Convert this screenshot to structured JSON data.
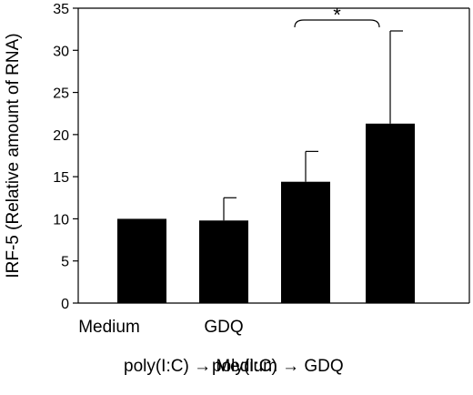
{
  "chart_data": {
    "type": "bar",
    "categories": [
      "Medium",
      "GDQ",
      "poly(I:C) → Medium",
      "poly(I:C) → GDQ"
    ],
    "series": [
      {
        "values": [
          10.0,
          9.8,
          14.4,
          21.3
        ],
        "error_upper": [
          0,
          2.7,
          3.6,
          11.0
        ]
      }
    ],
    "title": "",
    "xlabel": "",
    "ylabel": "IRF-5 (Relative amount of RNA)",
    "ylim": [
      0,
      35
    ],
    "yticks": [
      0,
      5,
      10,
      15,
      20,
      25,
      30,
      35
    ],
    "grid": false,
    "legend": "none",
    "bar_color": "#000000",
    "significance": {
      "between": [
        2,
        3
      ],
      "label": "*"
    }
  }
}
